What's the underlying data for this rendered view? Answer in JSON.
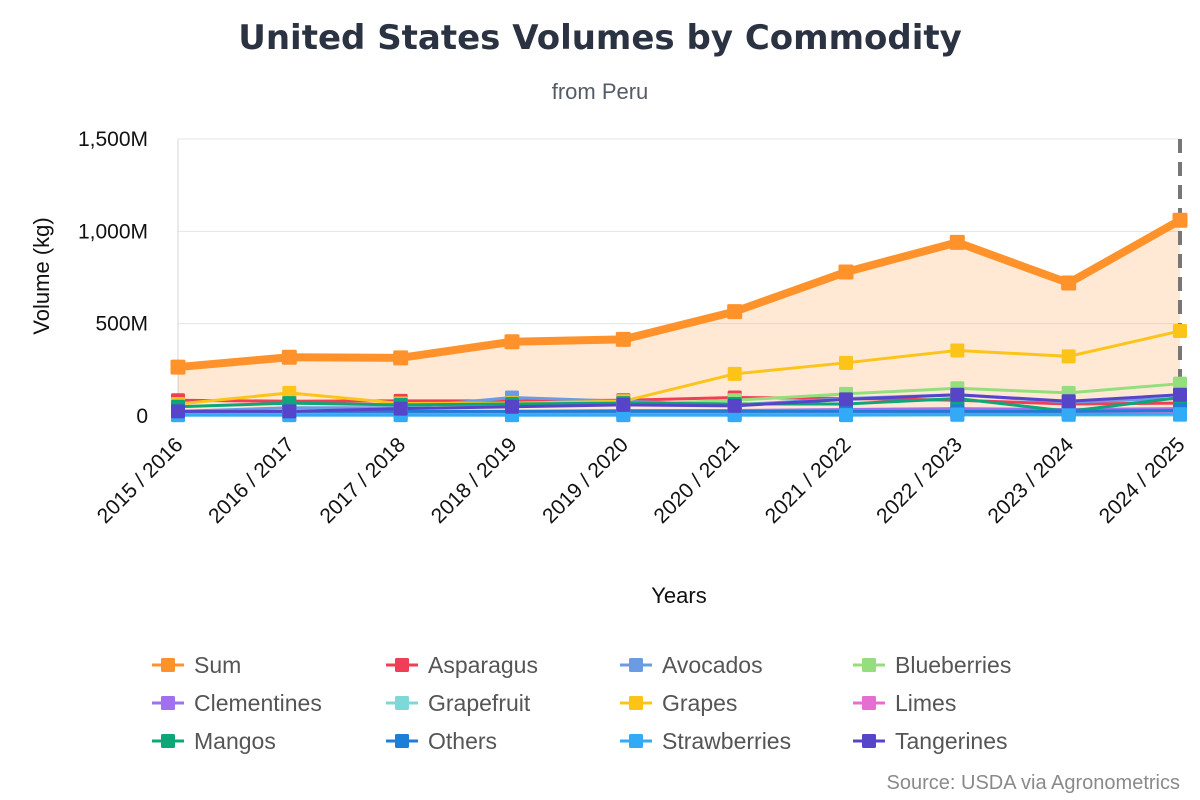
{
  "chart_data": {
    "type": "line",
    "title": "United States Volumes by Commodity",
    "subtitle": "from Peru",
    "xlabel": "Years",
    "ylabel": "Volume (kg)",
    "ylim": [
      0,
      1500000000
    ],
    "yticks": [
      0,
      500000000,
      1000000000,
      1500000000
    ],
    "ytick_labels": [
      "0",
      "500M",
      "1,000M",
      "1,500M"
    ],
    "grid": true,
    "legend_position": "bottom",
    "credits": "Source: USDA via Agronometrics",
    "categories": [
      "2015 / 2016",
      "2016 / 2017",
      "2017 / 2018",
      "2018 / 2019",
      "2019 / 2020",
      "2020 / 2021",
      "2021 / 2022",
      "2022 / 2023",
      "2023 / 2024",
      "2024 / 2025"
    ],
    "series": [
      {
        "name": "Sum",
        "color": "#ff922b",
        "area": true,
        "values": [
          265000000,
          318000000,
          315000000,
          402000000,
          415000000,
          565000000,
          780000000,
          940000000,
          720000000,
          1060000000
        ]
      },
      {
        "name": "Asparagus",
        "color": "#f03e56",
        "values": [
          85000000,
          80000000,
          82000000,
          82000000,
          85000000,
          100000000,
          95000000,
          85000000,
          65000000,
          70000000
        ]
      },
      {
        "name": "Avocados",
        "color": "#6c9be6",
        "values": [
          25000000,
          45000000,
          45000000,
          100000000,
          80000000,
          60000000,
          95000000,
          115000000,
          75000000,
          95000000
        ]
      },
      {
        "name": "Blueberries",
        "color": "#95de7e",
        "values": [
          10000000,
          20000000,
          40000000,
          55000000,
          60000000,
          85000000,
          120000000,
          150000000,
          125000000,
          175000000
        ]
      },
      {
        "name": "Clementines",
        "color": "#a070f0",
        "values": [
          15000000,
          15000000,
          20000000,
          25000000,
          30000000,
          30000000,
          35000000,
          40000000,
          35000000,
          40000000
        ]
      },
      {
        "name": "Grapefruit",
        "color": "#7ed8d8",
        "values": [
          5000000,
          5000000,
          5000000,
          5000000,
          5000000,
          5000000,
          5000000,
          5000000,
          5000000,
          5000000
        ]
      },
      {
        "name": "Grapes",
        "color": "#fcc419",
        "values": [
          65000000,
          125000000,
          68000000,
          70000000,
          80000000,
          228000000,
          288000000,
          355000000,
          323000000,
          460000000
        ]
      },
      {
        "name": "Limes",
        "color": "#e66ed2",
        "values": [
          10000000,
          10000000,
          10000000,
          10000000,
          10000000,
          10000000,
          10000000,
          12000000,
          12000000,
          15000000
        ]
      },
      {
        "name": "Mangos",
        "color": "#0ca678",
        "values": [
          50000000,
          70000000,
          60000000,
          65000000,
          70000000,
          65000000,
          65000000,
          95000000,
          25000000,
          100000000
        ]
      },
      {
        "name": "Others",
        "color": "#1c7ed6",
        "values": [
          25000000,
          25000000,
          25000000,
          25000000,
          25000000,
          25000000,
          25000000,
          25000000,
          25000000,
          30000000
        ]
      },
      {
        "name": "Strawberries",
        "color": "#33aaf5",
        "values": [
          5000000,
          5000000,
          5000000,
          5000000,
          5000000,
          5000000,
          5000000,
          8000000,
          8000000,
          10000000
        ]
      },
      {
        "name": "Tangerines",
        "color": "#5645c8",
        "values": [
          25000000,
          25000000,
          40000000,
          50000000,
          60000000,
          55000000,
          90000000,
          115000000,
          80000000,
          115000000
        ]
      }
    ],
    "crosshair_category": "2024 / 2025"
  }
}
